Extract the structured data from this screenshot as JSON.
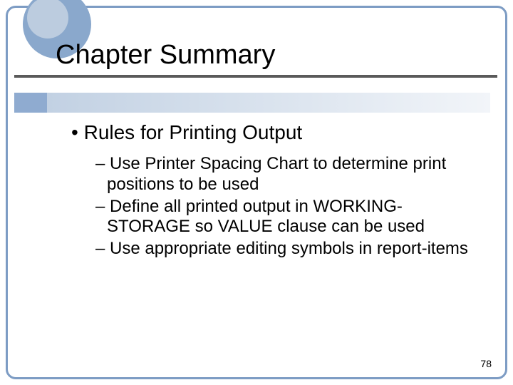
{
  "colors": {
    "frame_border": "#7d9cc4",
    "inner_fill": "#ffffff",
    "circle_outer": "#8aa8cc",
    "circle_inner": "#bcccdf",
    "title_underline": "#5a5a5a",
    "accent_bar": "#8fabd0",
    "band_left": "#c2d1e3",
    "band_right": "#f2f5f9"
  },
  "title": "Chapter Summary",
  "fonts": {
    "title_size": 38,
    "lvl1_size": 28,
    "lvl2_size": 24,
    "pagenum_size": 14
  },
  "bullets": {
    "lvl1": "Rules for Printing Output",
    "lvl2": [
      "Use Printer Spacing Chart to determine print positions to be used",
      "Define all printed output in WORKING-STORAGE so VALUE clause can be used",
      "Use appropriate editing symbols in report-items"
    ]
  },
  "page_number": "78"
}
